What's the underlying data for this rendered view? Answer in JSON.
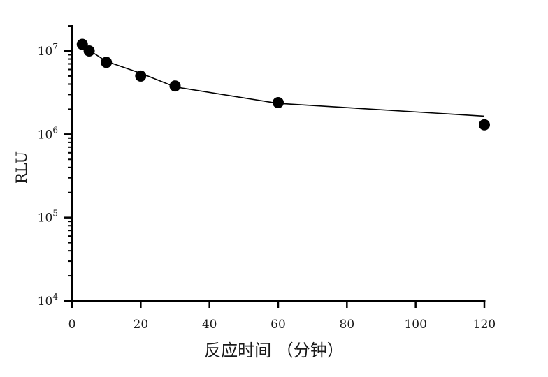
{
  "chart_data": {
    "type": "scatter",
    "xlabel": "反应时间 （分钟）",
    "ylabel": "RLU",
    "xlim": [
      0,
      120
    ],
    "ylim": [
      10000,
      20000000
    ],
    "y_scale": "log",
    "x_ticks": [
      0,
      20,
      40,
      60,
      80,
      100,
      120
    ],
    "y_ticks": [
      {
        "value": 10000,
        "base": "10",
        "exp": "4"
      },
      {
        "value": 100000,
        "base": "10",
        "exp": "5"
      },
      {
        "value": 1000000,
        "base": "10",
        "exp": "6"
      },
      {
        "value": 10000000,
        "base": "10",
        "exp": "7"
      }
    ],
    "grid": false,
    "series": [
      {
        "points": [
          [
            3,
            12000000
          ],
          [
            5,
            10000000
          ],
          [
            10,
            7300000
          ],
          [
            20,
            5000000
          ],
          [
            30,
            3800000
          ],
          [
            60,
            2400000
          ],
          [
            120,
            1300000
          ]
        ],
        "color": "#000000"
      }
    ],
    "fit_curve": [
      [
        3,
        11800000
      ],
      [
        5,
        10200000
      ],
      [
        10,
        7500000
      ],
      [
        20,
        5400000
      ],
      [
        30,
        3700000
      ],
      [
        60,
        2350000
      ],
      [
        120,
        1650000
      ]
    ]
  }
}
